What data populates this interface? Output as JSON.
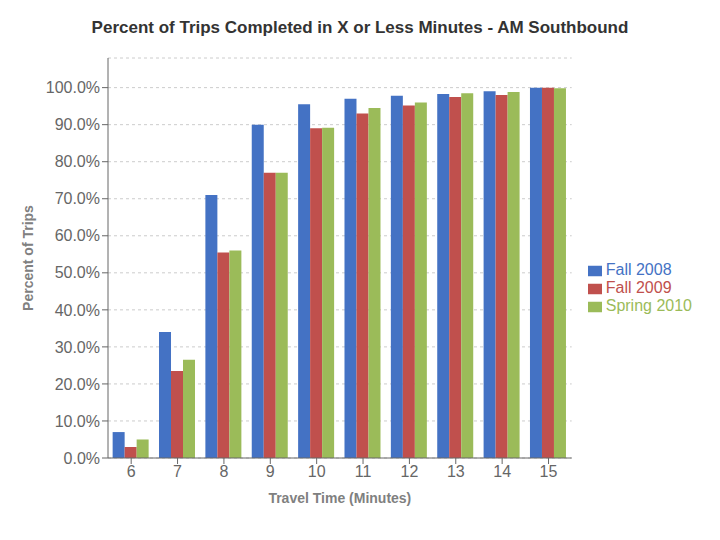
{
  "chart_data": {
    "type": "bar",
    "title": "Percent of Trips Completed in X or Less Minutes - AM Southbound",
    "x_label": "Travel Time (Minutes)",
    "y_label": "Percent of Trips",
    "categories": [
      6,
      7,
      8,
      9,
      10,
      11,
      12,
      13,
      14,
      15
    ],
    "series": [
      {
        "name": "Fall 2008",
        "color": "#4472C4",
        "values": [
          0.07,
          0.34,
          0.71,
          0.9,
          0.955,
          0.97,
          0.978,
          0.983,
          0.99,
          1.0
        ]
      },
      {
        "name": "Fall 2009",
        "color": "#C0504D",
        "values": [
          0.03,
          0.235,
          0.555,
          0.77,
          0.89,
          0.93,
          0.952,
          0.975,
          0.98,
          1.0
        ]
      },
      {
        "name": "Spring 2010",
        "color": "#9BBB59",
        "values": [
          0.05,
          0.265,
          0.56,
          0.77,
          0.892,
          0.945,
          0.96,
          0.985,
          0.988,
          0.998
        ]
      }
    ],
    "ylim": [
      0,
      1.08
    ],
    "yticks": [
      {
        "value": 0.0,
        "label": "0.0%"
      },
      {
        "value": 0.1,
        "label": "10.0%"
      },
      {
        "value": 0.2,
        "label": "20.0%"
      },
      {
        "value": 0.3,
        "label": "30.0%"
      },
      {
        "value": 0.4,
        "label": "40.0%"
      },
      {
        "value": 0.5,
        "label": "50.0%"
      },
      {
        "value": 0.6,
        "label": "60.0%"
      },
      {
        "value": 0.7,
        "label": "70.0%"
      },
      {
        "value": 0.8,
        "label": "80.0%"
      },
      {
        "value": 0.9,
        "label": "90.0%"
      },
      {
        "value": 1.0,
        "label": "100.0%"
      }
    ],
    "grid": true,
    "legend": "right"
  }
}
